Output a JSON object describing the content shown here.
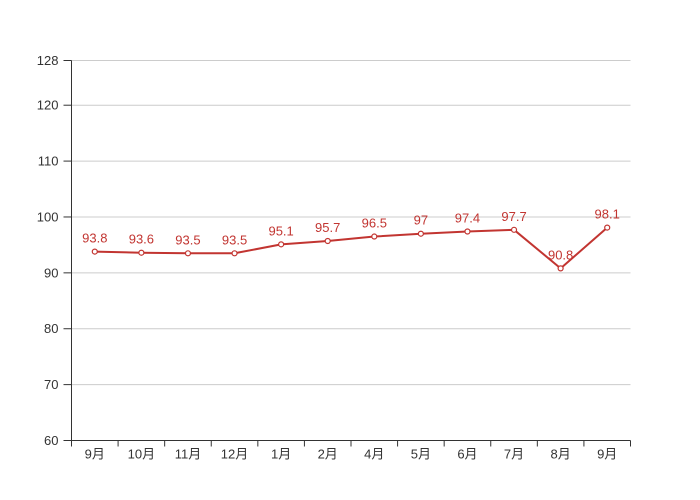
{
  "page": {
    "background": "#ffffff"
  },
  "chart_data": {
    "type": "line",
    "title": "",
    "xlabel": "",
    "ylabel": "",
    "categories": [
      "9月",
      "10月",
      "11月",
      "12月",
      "1月",
      "2月",
      "4月",
      "5月",
      "6月",
      "7月",
      "8月",
      "9月"
    ],
    "values": [
      93.8,
      93.6,
      93.5,
      93.5,
      95.1,
      95.7,
      96.5,
      97,
      97.4,
      97.7,
      90.8,
      98.1
    ],
    "value_labels": [
      "93.8",
      "93.6",
      "93.5",
      "93.5",
      "95.1",
      "95.7",
      "96.5",
      "97",
      "97.4",
      "97.7",
      "90.8",
      "98.1"
    ],
    "ylim": [
      60,
      128
    ],
    "y_ticks": [
      60,
      70,
      80,
      90,
      100,
      110,
      120,
      128
    ],
    "grid": true,
    "legend": "none",
    "marker": "empty-circle",
    "label_position": "top",
    "colors": {
      "series": "#c23531",
      "point_label": "#c23531",
      "marker_fill": "#ffffff",
      "axis_line": "#333333",
      "axis_label": "#333333",
      "grid_line": "#cccccc",
      "background": "#ffffff"
    }
  }
}
